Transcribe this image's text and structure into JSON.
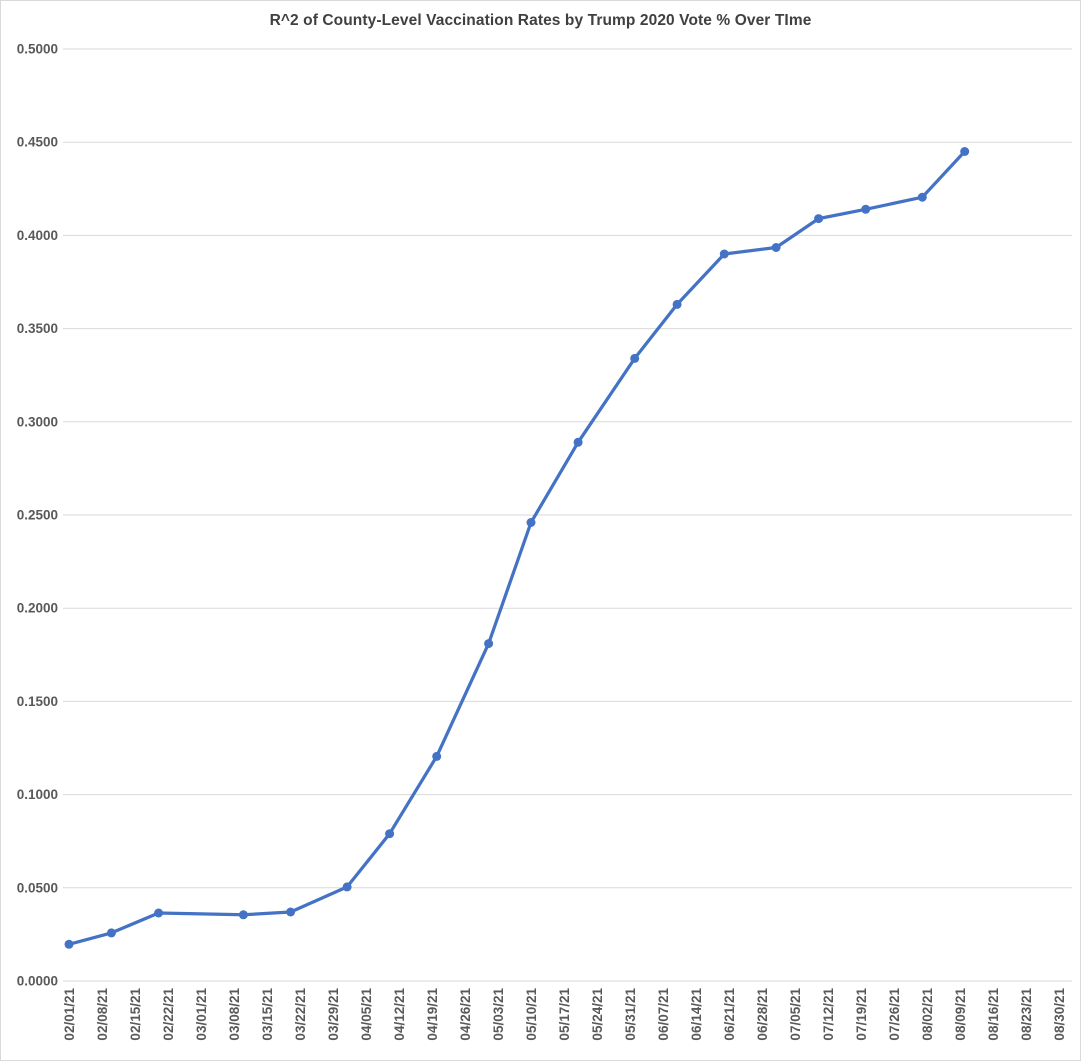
{
  "chart_data": {
    "type": "line",
    "title": "R^2 of County-Level Vaccination Rates by Trump 2020 Vote % Over TIme",
    "xlabel": "",
    "ylabel": "",
    "ylim": [
      0,
      0.5
    ],
    "y_tick_step": 0.05,
    "y_tick_decimals": 4,
    "grid": true,
    "legend_position": "none",
    "x_axis_type": "date",
    "x_tick_labels": [
      "02/01/21",
      "02/08/21",
      "02/15/21",
      "02/22/21",
      "03/01/21",
      "03/08/21",
      "03/15/21",
      "03/22/21",
      "03/29/21",
      "04/05/21",
      "04/12/21",
      "04/19/21",
      "04/26/21",
      "05/03/21",
      "05/10/21",
      "05/17/21",
      "05/24/21",
      "05/31/21",
      "06/07/21",
      "06/14/21",
      "06/21/21",
      "06/28/21",
      "07/05/21",
      "07/12/21",
      "07/19/21",
      "07/26/21",
      "08/02/21",
      "08/09/21",
      "08/16/21",
      "08/23/21",
      "08/30/21"
    ],
    "series": [
      {
        "color": "#4472C4",
        "marker": "circle",
        "points": [
          {
            "date": "02/01/21",
            "value": 0.0197
          },
          {
            "date": "02/10/21",
            "value": 0.0258
          },
          {
            "date": "02/20/21",
            "value": 0.0365
          },
          {
            "date": "03/10/21",
            "value": 0.0355
          },
          {
            "date": "03/20/21",
            "value": 0.037
          },
          {
            "date": "04/01/21",
            "value": 0.0505
          },
          {
            "date": "04/10/21",
            "value": 0.079
          },
          {
            "date": "04/20/21",
            "value": 0.1205
          },
          {
            "date": "05/01/21",
            "value": 0.181
          },
          {
            "date": "05/10/21",
            "value": 0.246
          },
          {
            "date": "05/20/21",
            "value": 0.289
          },
          {
            "date": "06/01/21",
            "value": 0.334
          },
          {
            "date": "06/10/21",
            "value": 0.363
          },
          {
            "date": "06/20/21",
            "value": 0.39
          },
          {
            "date": "07/01/21",
            "value": 0.3935
          },
          {
            "date": "07/10/21",
            "value": 0.409
          },
          {
            "date": "07/20/21",
            "value": 0.414
          },
          {
            "date": "08/01/21",
            "value": 0.4205
          },
          {
            "date": "08/10/21",
            "value": 0.445
          }
        ]
      }
    ]
  },
  "colors": {
    "background": "#FFFFFF",
    "gridline": "#D9D9D9",
    "title_text": "#404040",
    "axis_label_text": "#595959",
    "series_line": "#4472C4",
    "chart_border": "#D9D9D9"
  }
}
